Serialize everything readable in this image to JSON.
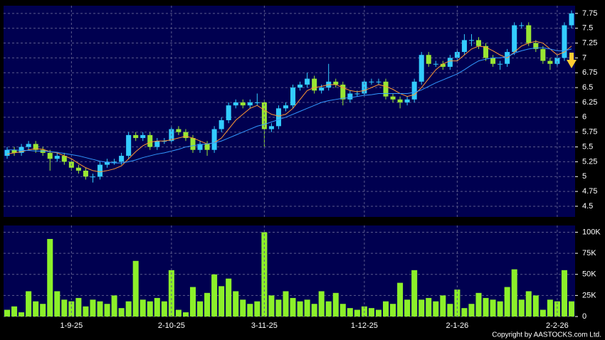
{
  "chart_data": [
    {
      "type": "candlestick",
      "up_color": "#33ccff",
      "down_color": "#99e633",
      "grid": true,
      "ylim": [
        4.32,
        7.88
      ],
      "yticks": [
        4.5,
        4.75,
        5,
        5.25,
        5.5,
        5.75,
        6,
        6.25,
        6.5,
        6.75,
        7,
        7.25,
        7.5,
        7.75
      ],
      "open": [
        5.35,
        5.45,
        5.4,
        5.5,
        5.55,
        5.45,
        5.4,
        5.3,
        5.35,
        5.25,
        5.15,
        5.1,
        5.0,
        5.0,
        5.2,
        5.25,
        5.25,
        5.35,
        5.7,
        5.65,
        5.7,
        5.5,
        5.6,
        5.6,
        5.8,
        5.75,
        5.65,
        5.45,
        5.55,
        5.45,
        5.8,
        5.95,
        6.2,
        6.25,
        6.2,
        6.25,
        6.25,
        5.8,
        5.85,
        6.15,
        6.2,
        6.5,
        6.55,
        6.65,
        6.45,
        6.5,
        6.6,
        6.55,
        6.3,
        6.4,
        6.4,
        6.6,
        6.6,
        6.6,
        6.35,
        6.3,
        6.25,
        6.3,
        6.6,
        7.05,
        6.9,
        6.9,
        6.85,
        7.0,
        7.1,
        7.3,
        7.3,
        7.2,
        7.0,
        6.9,
        6.9,
        7.1,
        7.55,
        7.55,
        7.25,
        7.15,
        6.95,
        6.9,
        7.0,
        7.55
      ],
      "high": [
        5.5,
        5.5,
        5.55,
        5.6,
        5.6,
        5.5,
        5.45,
        5.4,
        5.4,
        5.3,
        5.2,
        5.15,
        5.05,
        5.25,
        5.3,
        5.3,
        5.4,
        5.75,
        5.75,
        5.75,
        5.75,
        5.65,
        5.65,
        5.85,
        5.85,
        5.8,
        5.7,
        5.6,
        5.6,
        5.85,
        6.0,
        6.25,
        6.3,
        6.3,
        6.3,
        6.4,
        6.3,
        5.9,
        6.2,
        6.25,
        6.55,
        6.6,
        6.75,
        6.7,
        6.55,
        6.9,
        6.65,
        6.6,
        6.45,
        6.45,
        6.65,
        6.65,
        6.65,
        6.65,
        6.4,
        6.35,
        6.35,
        6.65,
        7.1,
        7.1,
        6.95,
        6.95,
        7.05,
        7.15,
        7.4,
        7.4,
        7.35,
        7.25,
        7.05,
        6.95,
        7.15,
        7.6,
        7.6,
        7.6,
        7.3,
        7.2,
        7.0,
        7.05,
        7.6,
        7.8
      ],
      "low": [
        5.3,
        5.35,
        5.35,
        5.45,
        5.4,
        5.35,
        5.1,
        5.25,
        5.2,
        5.1,
        5.05,
        4.95,
        4.9,
        4.95,
        5.15,
        5.2,
        5.2,
        5.3,
        5.6,
        5.6,
        5.45,
        5.45,
        5.55,
        5.55,
        5.7,
        5.6,
        5.4,
        5.4,
        5.35,
        5.4,
        5.75,
        5.9,
        6.15,
        6.15,
        6.15,
        6.2,
        5.5,
        5.75,
        5.8,
        6.1,
        6.15,
        6.45,
        6.5,
        6.4,
        6.4,
        6.45,
        6.5,
        6.2,
        6.25,
        6.35,
        6.35,
        6.55,
        6.55,
        6.3,
        6.25,
        6.15,
        6.2,
        6.25,
        6.55,
        6.85,
        6.85,
        6.8,
        6.8,
        6.95,
        7.05,
        7.2,
        7.15,
        6.95,
        6.85,
        6.8,
        6.85,
        7.05,
        7.5,
        7.2,
        7.1,
        6.9,
        6.8,
        6.85,
        6.95,
        7.5
      ],
      "close": [
        5.45,
        5.4,
        5.5,
        5.55,
        5.45,
        5.4,
        5.3,
        5.35,
        5.25,
        5.15,
        5.1,
        5.0,
        5.0,
        5.2,
        5.25,
        5.25,
        5.35,
        5.7,
        5.65,
        5.7,
        5.5,
        5.6,
        5.6,
        5.8,
        5.75,
        5.65,
        5.45,
        5.55,
        5.45,
        5.8,
        5.95,
        6.2,
        6.25,
        6.2,
        6.25,
        6.25,
        5.8,
        5.85,
        6.15,
        6.2,
        6.5,
        6.55,
        6.65,
        6.45,
        6.5,
        6.6,
        6.55,
        6.3,
        6.4,
        6.4,
        6.6,
        6.6,
        6.6,
        6.35,
        6.3,
        6.25,
        6.3,
        6.6,
        7.05,
        6.9,
        6.9,
        6.85,
        7.0,
        7.1,
        7.3,
        7.3,
        7.2,
        7.0,
        6.9,
        6.9,
        7.1,
        7.55,
        7.55,
        7.25,
        7.15,
        6.95,
        6.9,
        7.0,
        7.55,
        7.75
      ],
      "ma_lines": [
        {
          "color": "#ff9933",
          "values": [
            5.38,
            5.4,
            5.42,
            5.45,
            5.47,
            5.46,
            5.42,
            5.4,
            5.35,
            5.3,
            5.22,
            5.15,
            5.1,
            5.08,
            5.1,
            5.13,
            5.18,
            5.3,
            5.42,
            5.52,
            5.58,
            5.6,
            5.6,
            5.62,
            5.65,
            5.68,
            5.65,
            5.6,
            5.55,
            5.57,
            5.65,
            5.8,
            5.95,
            6.05,
            6.15,
            6.2,
            6.12,
            6.05,
            6.02,
            6.05,
            6.15,
            6.3,
            6.45,
            6.5,
            6.52,
            6.55,
            6.55,
            6.5,
            6.45,
            6.43,
            6.45,
            6.5,
            6.55,
            6.52,
            6.47,
            6.4,
            6.35,
            6.38,
            6.5,
            6.65,
            6.8,
            6.9,
            6.95,
            6.95,
            7.05,
            7.15,
            7.2,
            7.18,
            7.12,
            7.05,
            7.0,
            7.1,
            7.2,
            7.25,
            7.28,
            7.25,
            7.15,
            7.05,
            7.1,
            7.2
          ]
        },
        {
          "color": "#3399ff",
          "values": [
            5.45,
            5.45,
            5.44,
            5.44,
            5.43,
            5.43,
            5.42,
            5.41,
            5.39,
            5.37,
            5.35,
            5.32,
            5.29,
            5.26,
            5.24,
            5.23,
            5.23,
            5.25,
            5.28,
            5.32,
            5.35,
            5.38,
            5.4,
            5.43,
            5.46,
            5.5,
            5.52,
            5.54,
            5.55,
            5.57,
            5.6,
            5.65,
            5.7,
            5.75,
            5.8,
            5.85,
            5.88,
            5.92,
            5.96,
            6.0,
            6.05,
            6.1,
            6.15,
            6.2,
            6.25,
            6.28,
            6.3,
            6.32,
            6.33,
            6.35,
            6.37,
            6.38,
            6.4,
            6.4,
            6.4,
            6.4,
            6.4,
            6.42,
            6.46,
            6.52,
            6.58,
            6.63,
            6.68,
            6.73,
            6.8,
            6.88,
            6.95,
            6.98,
            7.0,
            7.0,
            7.02,
            7.08,
            7.12,
            7.15,
            7.17,
            7.17,
            7.15,
            7.12,
            7.12,
            7.15
          ]
        }
      ]
    },
    {
      "type": "bar",
      "color": "#8cf02a",
      "grid": true,
      "ylim": [
        0,
        108000
      ],
      "yticks": [
        0,
        {
          "value": 25000,
          "label": "25K"
        },
        {
          "value": 50000,
          "label": "50K"
        },
        {
          "value": 75000,
          "label": "75K"
        },
        {
          "value": 100000,
          "label": "100K"
        }
      ],
      "categories": [
        null,
        null,
        null,
        null,
        null,
        null,
        null,
        null,
        null,
        "1-9-25",
        null,
        null,
        null,
        null,
        null,
        null,
        null,
        null,
        null,
        null,
        null,
        null,
        null,
        "2-10-25",
        null,
        null,
        null,
        null,
        null,
        null,
        null,
        null,
        null,
        null,
        null,
        null,
        "3-11-25",
        null,
        null,
        null,
        null,
        null,
        null,
        null,
        null,
        null,
        null,
        null,
        null,
        null,
        "1-12-25",
        null,
        null,
        null,
        null,
        null,
        null,
        null,
        null,
        null,
        null,
        null,
        null,
        "2-1-26",
        null,
        null,
        null,
        null,
        null,
        null,
        null,
        null,
        null,
        null,
        null,
        null,
        null,
        "2-2-26",
        null,
        null
      ],
      "values": [
        8000,
        12000,
        5000,
        30000,
        18000,
        15000,
        92000,
        30000,
        20000,
        18000,
        22000,
        12000,
        20000,
        18000,
        15000,
        25000,
        10000,
        18000,
        66000,
        20000,
        18000,
        22000,
        18000,
        55000,
        8000,
        5000,
        35000,
        18000,
        28000,
        50000,
        36000,
        45000,
        30000,
        20000,
        15000,
        18000,
        100000,
        25000,
        20000,
        30000,
        22000,
        18000,
        20000,
        15000,
        30000,
        18000,
        28000,
        15000,
        10000,
        8000,
        12000,
        10000,
        8000,
        18000,
        15000,
        40000,
        20000,
        55000,
        20000,
        22000,
        18000,
        25000,
        15000,
        32000,
        10000,
        15000,
        28000,
        22000,
        20000,
        18000,
        35000,
        56000,
        20000,
        30000,
        25000,
        8000,
        20000,
        18000,
        55000,
        18000
      ]
    }
  ],
  "copyright": "Copyright by AASTOCKS.com Ltd."
}
